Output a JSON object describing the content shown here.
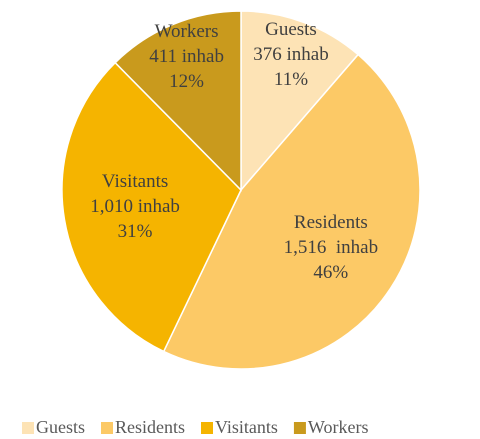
{
  "chart_data": {
    "type": "pie",
    "categories": [
      "Guests",
      "Residents",
      "Visitants",
      "Workers"
    ],
    "values": [
      376,
      1516,
      1010,
      411
    ],
    "value_labels": [
      "376 inhab",
      "1,516  inhab",
      "1,010 inhab",
      "411 inhab"
    ],
    "percents": [
      11,
      46,
      31,
      12
    ],
    "percent_labels": [
      "11%",
      "46%",
      "31%",
      "12%"
    ],
    "colors": [
      "#fde3b5",
      "#fcc966",
      "#f5b400",
      "#c99a1d"
    ],
    "legend": "bottom"
  }
}
